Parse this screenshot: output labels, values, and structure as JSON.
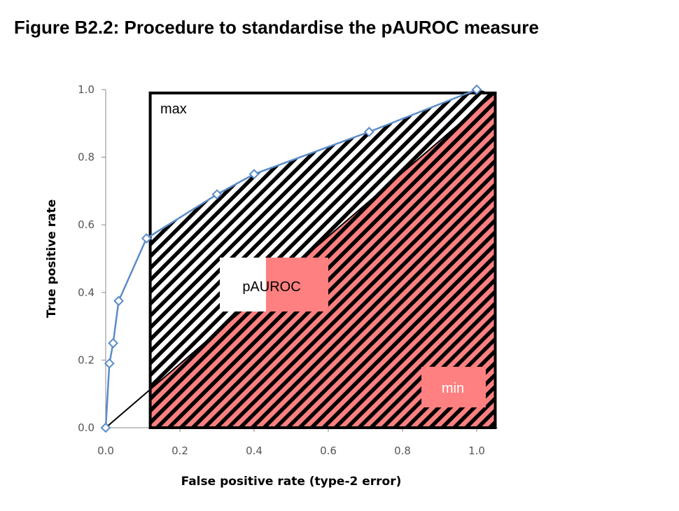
{
  "title": "Figure B2.2: Procedure to standardise the pAUROC measure",
  "chart_data": {
    "type": "line",
    "xlabel": "False positive rate (type-2 error)",
    "ylabel": "True positive rate",
    "xlim": [
      0,
      1
    ],
    "ylim": [
      0,
      1
    ],
    "x_ticks": [
      "0.0",
      "0.2",
      "0.4",
      "0.6",
      "0.8",
      "1.0"
    ],
    "y_ticks": [
      "0.0",
      "0.2",
      "0.4",
      "0.6",
      "0.8",
      "1.0"
    ],
    "series": [
      {
        "x": [
          0.0,
          0.01,
          0.02,
          0.035,
          0.11,
          0.3,
          0.4,
          0.71,
          1.0
        ],
        "y": [
          0.0,
          0.19,
          0.25,
          0.375,
          0.56,
          0.69,
          0.75,
          0.875,
          1.0
        ],
        "color": "#5b8cc8",
        "marker": "diamond"
      }
    ],
    "reference_line": {
      "from": [
        0,
        0
      ],
      "to": [
        1.05,
        0.99
      ]
    },
    "partial_region": {
      "x_from": 0.12,
      "x_to": 1.05,
      "y_to": 0.99
    },
    "annotations": {
      "max": "max",
      "pauroc": "pAUROC",
      "min": "min"
    },
    "colors": {
      "min_fill": "#ff8080",
      "hatch": "#000000",
      "box": "#000000"
    }
  }
}
